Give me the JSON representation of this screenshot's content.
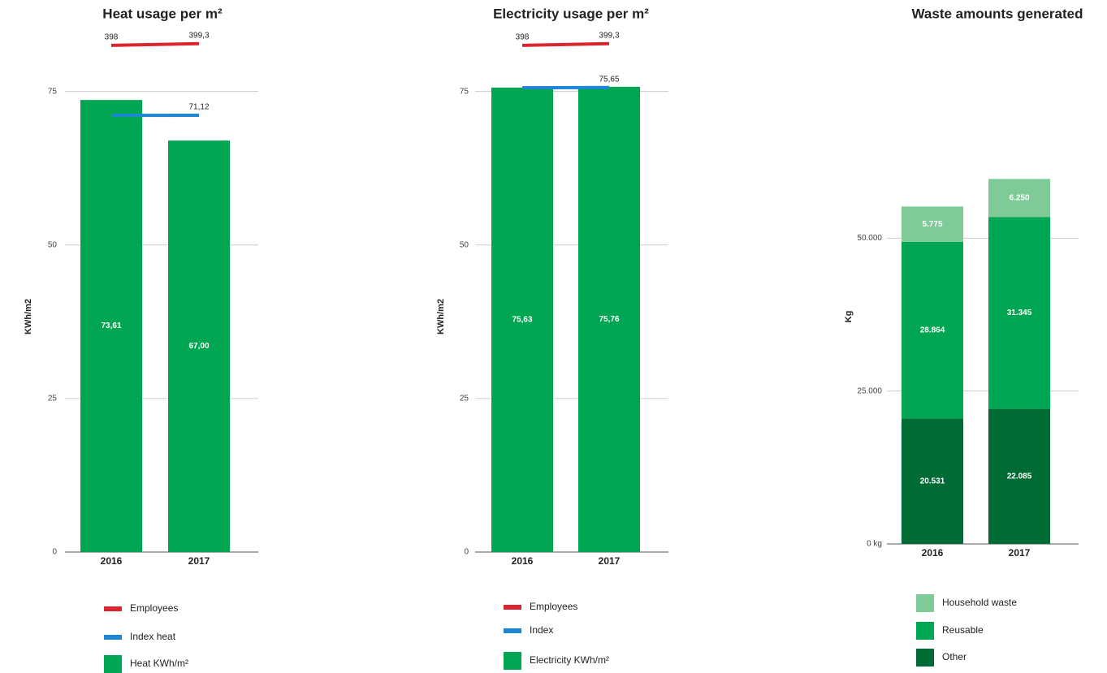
{
  "chart_data": [
    {
      "type": "bar",
      "title": "Heat usage per m²",
      "y_label": "KWh/m2",
      "categories": [
        "2016",
        "2017"
      ],
      "ylim": [
        0,
        85
      ],
      "yticks": [
        0,
        25,
        50,
        75
      ],
      "y2lim": [
        0,
        410
      ],
      "grid": true,
      "series": [
        {
          "name": "Employees",
          "type": "line",
          "axis": "y2",
          "color": "#d9252f",
          "values": [
            398,
            399.3
          ],
          "value_labels": [
            "398",
            "399,3"
          ]
        },
        {
          "name": "Index heat",
          "type": "line",
          "color": "#1d87d4",
          "values": [
            71.1,
            71.12
          ],
          "value_labels": [
            null,
            "71,12"
          ]
        },
        {
          "name": "Heat KWh/m²",
          "type": "bar",
          "color": "#00a651",
          "values": [
            73.61,
            67.0
          ],
          "value_labels": [
            "73,61",
            "67,00"
          ]
        }
      ]
    },
    {
      "type": "bar",
      "title": "Electricity usage per m²",
      "y_label": "KWh/m2",
      "categories": [
        "2016",
        "2017"
      ],
      "ylim": [
        0,
        85
      ],
      "yticks": [
        0,
        25,
        50,
        75
      ],
      "y2lim": [
        0,
        410
      ],
      "grid": true,
      "series": [
        {
          "name": "Employees",
          "type": "line",
          "axis": "y2",
          "color": "#d9252f",
          "values": [
            398,
            399.3
          ],
          "value_labels": [
            "398",
            "399,3"
          ]
        },
        {
          "name": "Index",
          "type": "line",
          "color": "#1d87d4",
          "values": [
            75.6,
            75.65
          ],
          "value_labels": [
            null,
            "75,65"
          ]
        },
        {
          "name": "Electricity KWh/m²",
          "type": "bar",
          "color": "#00a651",
          "values": [
            75.63,
            75.76
          ],
          "value_labels": [
            "75,63",
            "75,76"
          ]
        }
      ]
    },
    {
      "type": "stacked_bar",
      "title": "Waste amounts generated",
      "y_label": "Kg",
      "categories": [
        "2016",
        "2017"
      ],
      "ylim": [
        0,
        60000
      ],
      "yticks": [
        {
          "value": 0,
          "label": "0 kg"
        },
        {
          "value": 25000,
          "label": "25.000"
        },
        {
          "value": 50000,
          "label": "50.000"
        }
      ],
      "grid": true,
      "series": [
        {
          "name": "Other",
          "color": "#006b35",
          "values": [
            20531,
            22085
          ],
          "value_labels": [
            "20.531",
            "22.085"
          ]
        },
        {
          "name": "Reusable",
          "color": "#00a651",
          "values": [
            28864,
            31345
          ],
          "value_labels": [
            "28.864",
            "31.345"
          ]
        },
        {
          "name": "Household waste",
          "color": "#7fcb98",
          "values": [
            5775,
            6250
          ],
          "value_labels": [
            "5.775",
            "6.250"
          ]
        }
      ]
    }
  ]
}
